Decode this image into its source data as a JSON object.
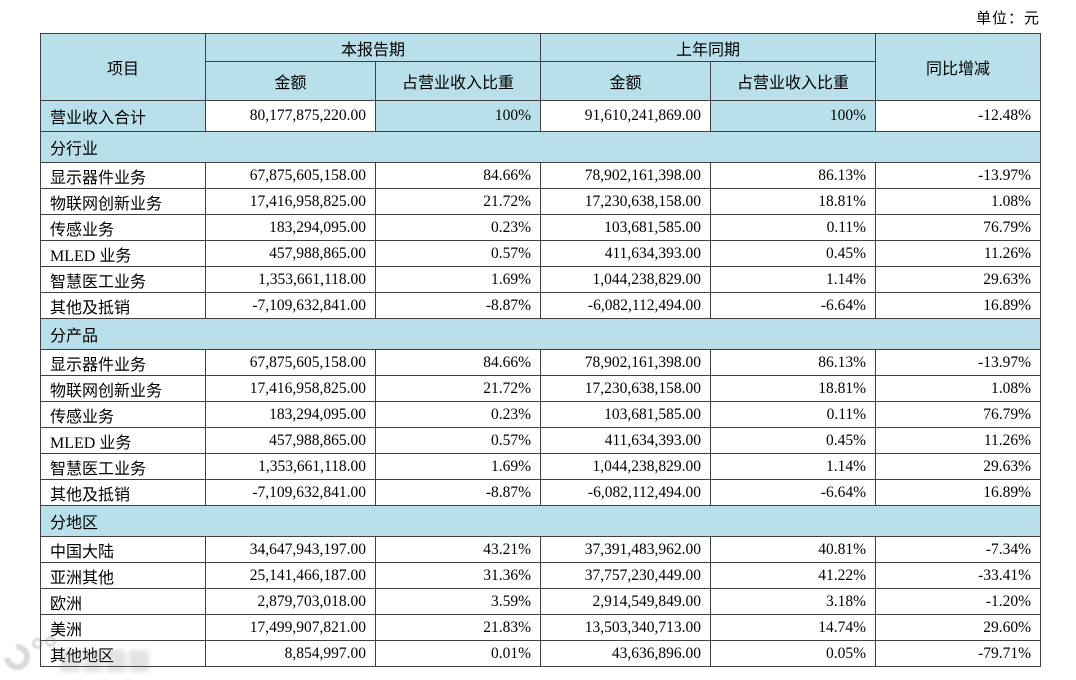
{
  "unit_label": "单位：元",
  "colors": {
    "header_bg": "#b9e0ea",
    "border": "#404040",
    "text": "#000000"
  },
  "table": {
    "header": {
      "item": "项目",
      "current_period": "本报告期",
      "prior_period": "上年同期",
      "amount": "金额",
      "pct_of_revenue": "占营业收入比重",
      "yoy_change": "同比增减"
    },
    "total_row": {
      "label": "营业收入合计",
      "current_amount": "80,177,875,220.00",
      "current_pct": "100%",
      "prior_amount": "91,610,241,869.00",
      "prior_pct": "100%",
      "yoy": "-12.48%"
    },
    "sections": [
      {
        "title": "分行业",
        "rows": [
          {
            "label": "显示器件业务",
            "current_amount": "67,875,605,158.00",
            "current_pct": "84.66%",
            "prior_amount": "78,902,161,398.00",
            "prior_pct": "86.13%",
            "yoy": "-13.97%"
          },
          {
            "label": "物联网创新业务",
            "current_amount": "17,416,958,825.00",
            "current_pct": "21.72%",
            "prior_amount": "17,230,638,158.00",
            "prior_pct": "18.81%",
            "yoy": "1.08%"
          },
          {
            "label": "传感业务",
            "current_amount": "183,294,095.00",
            "current_pct": "0.23%",
            "prior_amount": "103,681,585.00",
            "prior_pct": "0.11%",
            "yoy": "76.79%"
          },
          {
            "label": "MLED 业务",
            "current_amount": "457,988,865.00",
            "current_pct": "0.57%",
            "prior_amount": "411,634,393.00",
            "prior_pct": "0.45%",
            "yoy": "11.26%"
          },
          {
            "label": "智慧医工业务",
            "current_amount": "1,353,661,118.00",
            "current_pct": "1.69%",
            "prior_amount": "1,044,238,829.00",
            "prior_pct": "1.14%",
            "yoy": "29.63%"
          },
          {
            "label": "其他及抵销",
            "current_amount": "-7,109,632,841.00",
            "current_pct": "-8.87%",
            "prior_amount": "-6,082,112,494.00",
            "prior_pct": "-6.64%",
            "yoy": "16.89%"
          }
        ]
      },
      {
        "title": "分产品",
        "rows": [
          {
            "label": "显示器件业务",
            "current_amount": "67,875,605,158.00",
            "current_pct": "84.66%",
            "prior_amount": "78,902,161,398.00",
            "prior_pct": "86.13%",
            "yoy": "-13.97%"
          },
          {
            "label": "物联网创新业务",
            "current_amount": "17,416,958,825.00",
            "current_pct": "21.72%",
            "prior_amount": "17,230,638,158.00",
            "prior_pct": "18.81%",
            "yoy": "1.08%"
          },
          {
            "label": "传感业务",
            "current_amount": "183,294,095.00",
            "current_pct": "0.23%",
            "prior_amount": "103,681,585.00",
            "prior_pct": "0.11%",
            "yoy": "76.79%"
          },
          {
            "label": "MLED 业务",
            "current_amount": "457,988,865.00",
            "current_pct": "0.57%",
            "prior_amount": "411,634,393.00",
            "prior_pct": "0.45%",
            "yoy": "11.26%"
          },
          {
            "label": "智慧医工业务",
            "current_amount": "1,353,661,118.00",
            "current_pct": "1.69%",
            "prior_amount": "1,044,238,829.00",
            "prior_pct": "1.14%",
            "yoy": "29.63%"
          },
          {
            "label": "其他及抵销",
            "current_amount": "-7,109,632,841.00",
            "current_pct": "-8.87%",
            "prior_amount": "-6,082,112,494.00",
            "prior_pct": "-6.64%",
            "yoy": "16.89%"
          }
        ]
      },
      {
        "title": "分地区",
        "rows": [
          {
            "label": "中国大陆",
            "current_amount": "34,647,943,197.00",
            "current_pct": "43.21%",
            "prior_amount": "37,391,483,962.00",
            "prior_pct": "40.81%",
            "yoy": "-7.34%"
          },
          {
            "label": "亚洲其他",
            "current_amount": "25,141,466,187.00",
            "current_pct": "31.36%",
            "prior_amount": "37,757,230,449.00",
            "prior_pct": "41.22%",
            "yoy": "-33.41%"
          },
          {
            "label": "欧洲",
            "current_amount": "2,879,703,018.00",
            "current_pct": "3.59%",
            "prior_amount": "2,914,549,849.00",
            "prior_pct": "3.18%",
            "yoy": "-1.20%"
          },
          {
            "label": "美洲",
            "current_amount": "17,499,907,821.00",
            "current_pct": "21.83%",
            "prior_amount": "13,503,340,713.00",
            "prior_pct": "14.74%",
            "yoy": "29.60%"
          },
          {
            "label": "其他地区",
            "current_amount": "8,854,997.00",
            "current_pct": "0.01%",
            "prior_amount": "43,636,896.00",
            "prior_pct": "0.05%",
            "yoy": "-79.71%"
          }
        ]
      }
    ]
  }
}
